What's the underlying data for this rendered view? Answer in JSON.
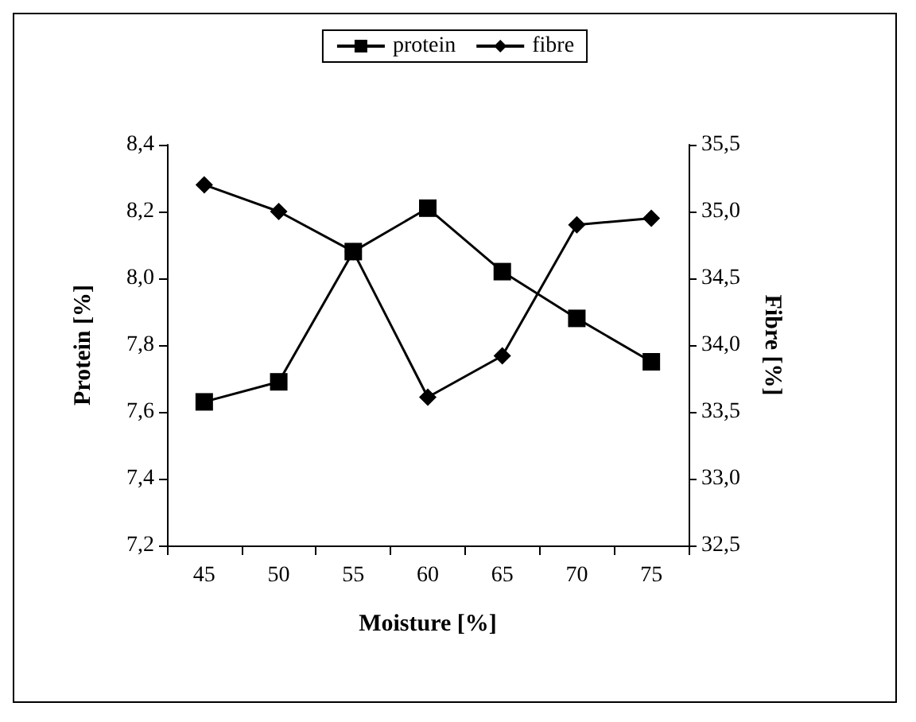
{
  "chart_data": {
    "type": "line",
    "xlabel": "Moisture [%]",
    "ylabel": "Protein [%]",
    "y2label": "Fibre [%]",
    "categories": [
      "45",
      "50",
      "55",
      "60",
      "65",
      "70",
      "75"
    ],
    "series": [
      {
        "name": "protein",
        "color": "#000000",
        "marker": "square",
        "values": [
          7.63,
          7.69,
          8.08,
          8.21,
          8.02,
          7.88,
          7.75
        ]
      },
      {
        "name": "fibre",
        "color": "#000000",
        "marker": "diamond",
        "axis": "y2",
        "values": [
          35.2,
          35.0,
          34.7,
          33.61,
          33.92,
          34.9,
          34.95
        ]
      }
    ],
    "ylim": [
      7.2,
      8.4
    ],
    "yticks": [
      {
        "value": 7.2,
        "label": "7,2"
      },
      {
        "value": 7.4,
        "label": "7,4"
      },
      {
        "value": 7.6,
        "label": "7,6"
      },
      {
        "value": 7.8,
        "label": "7,8"
      },
      {
        "value": 8.0,
        "label": "8,0"
      },
      {
        "value": 8.2,
        "label": "8,2"
      },
      {
        "value": 8.4,
        "label": "8,4"
      }
    ],
    "y2lim": [
      32.5,
      35.5
    ],
    "y2ticks": [
      {
        "value": 32.5,
        "label": "32,5"
      },
      {
        "value": 33.0,
        "label": "33,0"
      },
      {
        "value": 33.5,
        "label": "33,5"
      },
      {
        "value": 34.0,
        "label": "34,0"
      },
      {
        "value": 34.5,
        "label": "34,5"
      },
      {
        "value": 35.0,
        "label": "35,0"
      },
      {
        "value": 35.5,
        "label": "35,5"
      }
    ],
    "grid": false,
    "legend": "top",
    "line_style": "solid"
  }
}
